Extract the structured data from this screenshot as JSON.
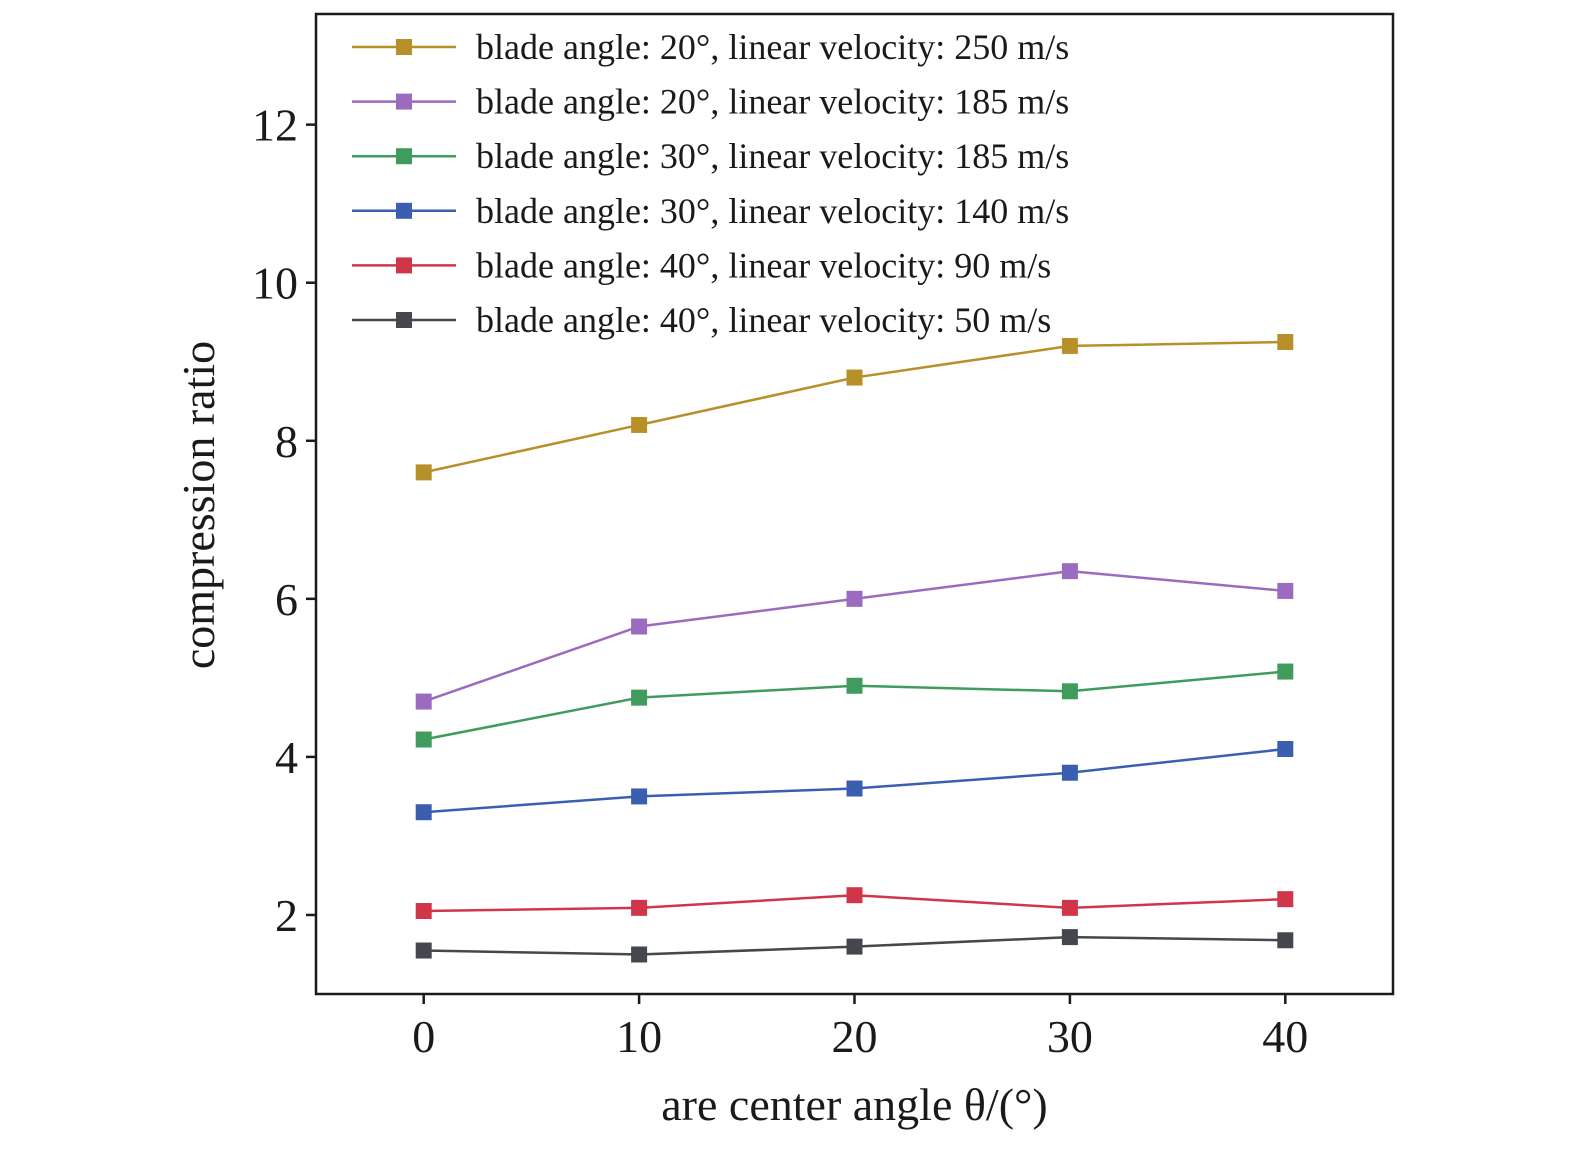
{
  "chart_data": {
    "type": "line",
    "title": "",
    "xlabel": "are center angle θ/(°)",
    "ylabel": "compression ratio",
    "x": [
      0,
      10,
      20,
      30,
      40
    ],
    "xticks": [
      "0",
      "10",
      "20",
      "30",
      "40"
    ],
    "yticks": [
      "2",
      "4",
      "6",
      "8",
      "10",
      "12"
    ],
    "xlim": [
      -5,
      45
    ],
    "ylim": [
      1,
      13.4
    ],
    "grid": false,
    "legend_position": "top-left",
    "marker": "square",
    "series": [
      {
        "name": "blade angle: 20°, linear velocity: 250 m/s",
        "color": "#b8902a",
        "values": [
          7.6,
          8.2,
          8.8,
          9.2,
          9.25
        ]
      },
      {
        "name": "blade angle: 20°, linear velocity: 185 m/s",
        "color": "#9b6bbf",
        "values": [
          4.7,
          5.65,
          6.0,
          6.35,
          6.1
        ]
      },
      {
        "name": "blade angle: 30°, linear velocity: 185 m/s",
        "color": "#3f9c5c",
        "values": [
          4.22,
          4.75,
          4.9,
          4.83,
          5.08
        ]
      },
      {
        "name": "blade angle: 30°, linear velocity: 140 m/s",
        "color": "#3a5fb0",
        "values": [
          3.3,
          3.5,
          3.6,
          3.8,
          4.1
        ]
      },
      {
        "name": "blade angle: 40°, linear velocity: 90 m/s",
        "color": "#d1354a",
        "values": [
          2.05,
          2.09,
          2.25,
          2.09,
          2.2
        ]
      },
      {
        "name": "blade angle: 40°, linear velocity: 50 m/s",
        "color": "#44474d",
        "values": [
          1.55,
          1.5,
          1.6,
          1.72,
          1.68
        ]
      }
    ]
  }
}
